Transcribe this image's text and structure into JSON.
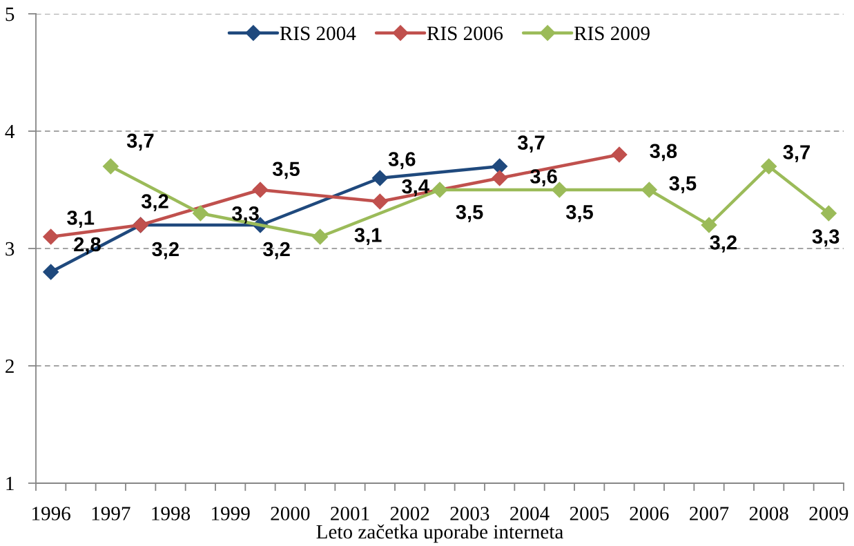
{
  "chart_data": {
    "type": "line",
    "xlabel": "Leto začetka uporabe interneta",
    "categories": [
      "1996",
      null,
      "1997",
      null,
      "1998",
      null,
      "1999",
      null,
      "2000",
      null,
      "2001",
      null,
      "2002",
      null,
      "2003",
      null,
      "2004",
      null,
      "2005",
      null,
      "2006",
      null,
      "2007",
      null,
      "2008",
      null,
      "2009"
    ],
    "series": [
      {
        "name": "RIS 2004",
        "color": "#1f497d",
        "values": [
          2.8,
          null,
          null,
          3.2,
          null,
          null,
          null,
          3.2,
          null,
          null,
          null,
          3.6,
          null,
          null,
          null,
          3.7,
          null,
          null,
          null,
          null,
          null,
          null,
          null,
          null,
          null,
          null,
          null
        ],
        "value_labels": [
          "2,8",
          null,
          null,
          "3,2",
          null,
          null,
          null,
          "3,2",
          null,
          null,
          null,
          "3,6",
          null,
          null,
          null,
          "3,7",
          null,
          null,
          null,
          null,
          null,
          null,
          null,
          null,
          null,
          null,
          null
        ]
      },
      {
        "name": "RIS 2006",
        "color": "#c0504d",
        "values": [
          3.1,
          null,
          null,
          3.2,
          null,
          null,
          null,
          3.5,
          null,
          null,
          null,
          3.4,
          null,
          null,
          null,
          3.6,
          null,
          null,
          null,
          3.8,
          null,
          null,
          null,
          null,
          null,
          null,
          null
        ],
        "value_labels": [
          "3,1",
          null,
          null,
          "3,2",
          null,
          null,
          null,
          "3,5",
          null,
          null,
          null,
          "3,4",
          null,
          null,
          null,
          "3,6",
          null,
          null,
          null,
          "3,8",
          null,
          null,
          null,
          null,
          null,
          null,
          null
        ]
      },
      {
        "name": "RIS 2009",
        "color": "#9bbb59",
        "values": [
          null,
          null,
          3.7,
          null,
          null,
          3.3,
          null,
          null,
          null,
          3.1,
          null,
          null,
          null,
          3.5,
          null,
          null,
          null,
          3.5,
          null,
          null,
          3.5,
          null,
          3.2,
          null,
          3.7,
          null,
          3.3
        ],
        "value_labels": [
          null,
          null,
          "3,7",
          null,
          null,
          "3,3",
          null,
          null,
          null,
          "3,1",
          null,
          null,
          null,
          "3,5",
          null,
          null,
          null,
          "3,5",
          null,
          null,
          "3,5",
          null,
          "3,2",
          null,
          "3,7",
          null,
          "3,3"
        ]
      }
    ],
    "ylim": [
      1,
      5
    ],
    "yticks": [
      1,
      2,
      3,
      4,
      5
    ],
    "grid": "y",
    "legend": "top",
    "marker": "diamond",
    "line_style": "solid"
  }
}
